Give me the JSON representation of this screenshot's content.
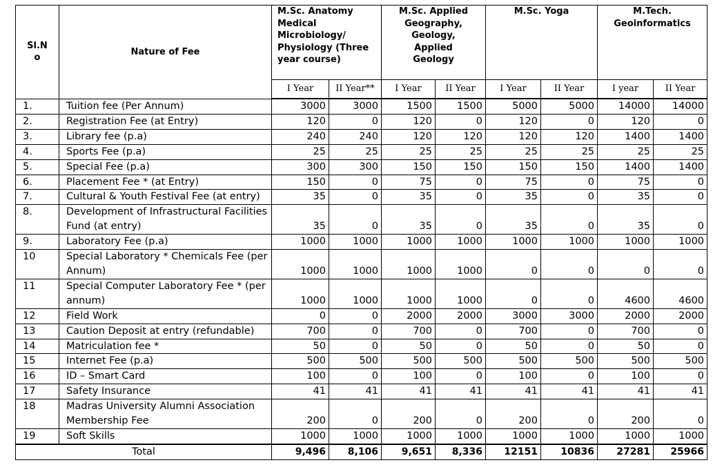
{
  "header": {
    "sl_no": "Sl.N o",
    "nature_of_fee": "Nature of Fee",
    "programs": [
      {
        "name": "M.Sc. Anatomy Medical Microbiology/ Physiology (Three year course)",
        "years": [
          "I Year",
          "II Year**"
        ]
      },
      {
        "name": "M.Sc. Applied Geography, Geology, Applied Geology",
        "years": [
          "I Year",
          "II Year"
        ]
      },
      {
        "name": "M.Sc. Yoga",
        "years": [
          "I Year",
          "II Year"
        ]
      },
      {
        "name": "M.Tech. Geoinformatics",
        "years": [
          "I year",
          "II Year"
        ]
      }
    ]
  },
  "rows": [
    {
      "sl": "1.",
      "fee": "Tuition fee (Per Annum)",
      "values": [
        "3000",
        "3000",
        "1500",
        "1500",
        "5000",
        "5000",
        "14000",
        "14000"
      ]
    },
    {
      "sl": "2.",
      "fee": "Registration Fee (at Entry)",
      "values": [
        "120",
        "0",
        "120",
        "0",
        "120",
        "0",
        "120",
        "0"
      ]
    },
    {
      "sl": "3.",
      "fee": "Library fee (p.a)",
      "values": [
        "240",
        "240",
        "120",
        "120",
        "120",
        "120",
        "1400",
        "1400"
      ]
    },
    {
      "sl": "4.",
      "fee": "Sports Fee (p.a)",
      "values": [
        "25",
        "25",
        "25",
        "25",
        "25",
        "25",
        "25",
        "25"
      ]
    },
    {
      "sl": "5.",
      "fee": "Special Fee (p.a)",
      "values": [
        "300",
        "300",
        "150",
        "150",
        "150",
        "150",
        "1400",
        "1400"
      ]
    },
    {
      "sl": "6.",
      "fee": "Placement Fee * (at Entry)",
      "values": [
        "150",
        "0",
        "75",
        "0",
        "75",
        "0",
        "75",
        "0"
      ]
    },
    {
      "sl": "7.",
      "fee": "Cultural & Youth Festival Fee (at entry)",
      "values": [
        "35",
        "0",
        "35",
        "0",
        "35",
        "0",
        "35",
        "0"
      ]
    },
    {
      "sl": "8.",
      "fee": "Development of  Infrastructural Facilities Fund (at entry)",
      "values": [
        "35",
        "0",
        "35",
        "0",
        "35",
        "0",
        "35",
        "0"
      ]
    },
    {
      "sl": "9.",
      "fee": "Laboratory Fee (p.a)",
      "values": [
        "1000",
        "1000",
        "1000",
        "1000",
        "1000",
        "1000",
        "1000",
        "1000"
      ]
    },
    {
      "sl": "10",
      "fee": "Special Laboratory * Chemicals Fee (per Annum)",
      "values": [
        "1000",
        "1000",
        "1000",
        "1000",
        "0",
        "0",
        "0",
        "0"
      ]
    },
    {
      "sl": "11",
      "fee": "Special Computer Laboratory Fee * (per annum)",
      "values": [
        "1000",
        "1000",
        "1000",
        "1000",
        "0",
        "0",
        "4600",
        "4600"
      ]
    },
    {
      "sl": "12",
      "fee": "Field Work",
      "values": [
        "0",
        "0",
        "2000",
        "2000",
        "3000",
        "3000",
        "2000",
        "2000"
      ]
    },
    {
      "sl": "13",
      "fee": "Caution Deposit at entry (refundable)",
      "values": [
        "700",
        "0",
        "700",
        "0",
        "700",
        "0",
        "700",
        "0"
      ]
    },
    {
      "sl": "14",
      "fee": "Matriculation fee *",
      "values": [
        "50",
        "0",
        "50",
        "0",
        "50",
        "0",
        "50",
        "0"
      ]
    },
    {
      "sl": "15",
      "fee": "Internet Fee (p.a)",
      "values": [
        "500",
        "500",
        "500",
        "500",
        "500",
        "500",
        "500",
        "500"
      ]
    },
    {
      "sl": "16",
      "fee": "ID – Smart Card",
      "values": [
        "100",
        "0",
        "100",
        "0",
        "100",
        "0",
        "100",
        "0"
      ]
    },
    {
      "sl": "17",
      "fee": "Safety Insurance",
      "values": [
        "41",
        "41",
        "41",
        "41",
        "41",
        "41",
        "41",
        "41"
      ]
    },
    {
      "sl": "18",
      "fee": "Madras University Alumni Association Membership Fee",
      "values": [
        "200",
        "0",
        "200",
        "0",
        "200",
        "0",
        "200",
        "0"
      ]
    },
    {
      "sl": "19",
      "fee": "Soft Skills",
      "values": [
        "1000",
        "1000",
        "1000",
        "1000",
        "1000",
        "1000",
        "1000",
        "1000"
      ]
    }
  ],
  "total": {
    "label": "Total",
    "values": [
      "9,496",
      "8,106",
      "9,651",
      "8,336",
      "12151",
      "10836",
      "27281",
      "25966"
    ]
  }
}
